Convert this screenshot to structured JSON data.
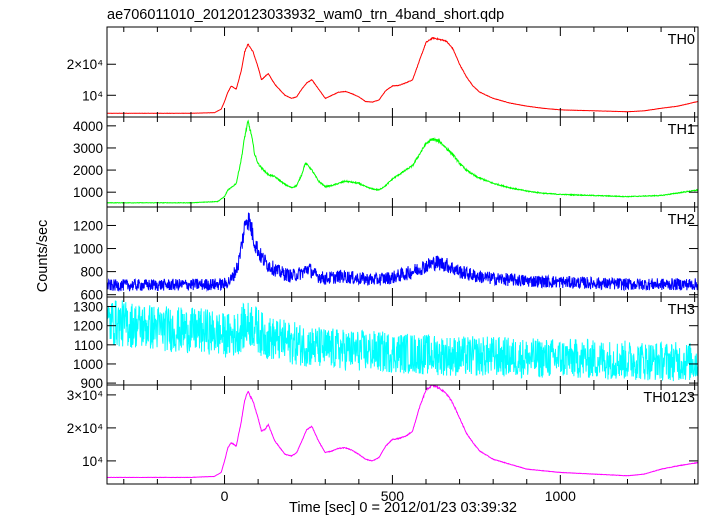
{
  "chart_data": {
    "type": "line",
    "title": "ae706011010_20120123033932_wam0_trn_4band_short.qdp",
    "xlabel": "Time [sec] 0 = 2012/01/23 03:39:32",
    "ylabel": "Counts/sec",
    "xlim": [
      -350,
      1410
    ],
    "x_ticks": [
      0,
      500,
      1000
    ],
    "panels": [
      {
        "name": "TH0",
        "color": "#ff0000",
        "noise": 0.004,
        "ylim": [
          3000,
          32000
        ],
        "y_ticks": [
          10000,
          20000
        ],
        "y_tick_labels": [
          "10⁴",
          "2×10⁴"
        ],
        "x": [
          -350,
          -100,
          -30,
          -10,
          0,
          10,
          20,
          35,
          50,
          60,
          70,
          85,
          100,
          110,
          120,
          130,
          150,
          180,
          200,
          215,
          230,
          245,
          260,
          280,
          300,
          320,
          340,
          360,
          380,
          400,
          420,
          440,
          460,
          480,
          500,
          520,
          540,
          560,
          580,
          600,
          620,
          640,
          660,
          680,
          700,
          720,
          740,
          760,
          800,
          850,
          900,
          950,
          1000,
          1100,
          1200,
          1250,
          1300,
          1350,
          1410
        ],
        "y": [
          4200,
          4200,
          4400,
          5500,
          8000,
          11000,
          13000,
          12000,
          18000,
          24000,
          26500,
          24000,
          19000,
          15000,
          16000,
          17000,
          13500,
          10000,
          9000,
          9500,
          12000,
          14000,
          15000,
          12000,
          9000,
          10000,
          11000,
          11200,
          10500,
          9500,
          8000,
          7800,
          8500,
          11500,
          13000,
          13200,
          14000,
          15000,
          21000,
          27000,
          28500,
          28000,
          27500,
          25000,
          20000,
          16000,
          13000,
          11000,
          9000,
          7500,
          6500,
          5800,
          5300,
          5000,
          4700,
          5000,
          5800,
          6500,
          8000
        ]
      },
      {
        "name": "TH1",
        "color": "#00ff00",
        "noise": 0.012,
        "ylim": [
          330,
          4400
        ],
        "y_ticks": [
          1000,
          2000,
          3000,
          4000
        ],
        "y_tick_labels": [
          "1000",
          "2000",
          "3000",
          "4000"
        ],
        "x": [
          -350,
          -100,
          -20,
          0,
          10,
          20,
          35,
          50,
          60,
          70,
          80,
          90,
          100,
          110,
          130,
          150,
          180,
          200,
          215,
          230,
          240,
          250,
          260,
          280,
          300,
          320,
          340,
          360,
          380,
          400,
          420,
          440,
          460,
          480,
          500,
          520,
          560,
          580,
          600,
          620,
          640,
          660,
          680,
          700,
          720,
          750,
          800,
          850,
          900,
          950,
          1000,
          1100,
          1200,
          1300,
          1410
        ],
        "y": [
          520,
          520,
          580,
          800,
          1100,
          1200,
          1400,
          2500,
          3500,
          4200,
          3600,
          2700,
          2300,
          2100,
          1800,
          1700,
          1350,
          1200,
          1300,
          1800,
          2300,
          2200,
          2000,
          1500,
          1250,
          1300,
          1400,
          1500,
          1450,
          1400,
          1250,
          1150,
          1100,
          1300,
          1600,
          1800,
          2200,
          2700,
          3200,
          3400,
          3300,
          3000,
          2700,
          2300,
          2000,
          1700,
          1400,
          1200,
          1050,
          950,
          900,
          850,
          800,
          850,
          1100
        ]
      },
      {
        "name": "TH2",
        "color": "#0000ff",
        "noise": 0.045,
        "ylim": [
          580,
          1360
        ],
        "y_ticks": [
          600,
          800,
          1000,
          1200
        ],
        "y_tick_labels": [
          "600",
          "800",
          "1000",
          "1200"
        ],
        "x": [
          -350,
          0,
          20,
          40,
          55,
          65,
          75,
          90,
          110,
          130,
          160,
          200,
          230,
          250,
          270,
          300,
          350,
          400,
          450,
          500,
          550,
          600,
          630,
          660,
          700,
          750,
          800,
          900,
          1000,
          1100,
          1200,
          1300,
          1410
        ],
        "y": [
          680,
          690,
          730,
          850,
          1100,
          1270,
          1230,
          1050,
          920,
          860,
          800,
          760,
          790,
          830,
          770,
          740,
          760,
          740,
          730,
          750,
          790,
          850,
          880,
          860,
          800,
          760,
          740,
          720,
          710,
          700,
          690,
          690,
          690
        ]
      },
      {
        "name": "TH3",
        "color": "#00ffff",
        "noise": 0.06,
        "ylim": [
          890,
          1350
        ],
        "y_ticks": [
          900,
          1000,
          1100,
          1200,
          1300
        ],
        "y_tick_labels": [
          "900",
          "1000",
          "1100",
          "1200",
          "1300"
        ],
        "x": [
          -350,
          -250,
          -150,
          -50,
          0,
          30,
          60,
          80,
          120,
          200,
          300,
          400,
          500,
          600,
          700,
          800,
          900,
          1000,
          1100,
          1200,
          1300,
          1410
        ],
        "y": [
          1220,
          1200,
          1180,
          1170,
          1150,
          1150,
          1200,
          1210,
          1140,
          1110,
          1080,
          1070,
          1060,
          1050,
          1040,
          1040,
          1030,
          1030,
          1025,
          1020,
          1015,
          1010
        ]
      },
      {
        "name": "TH0123",
        "color": "#ff00ff",
        "noise": 0.005,
        "ylim": [
          3000,
          33000
        ],
        "y_ticks": [
          10000,
          20000,
          30000
        ],
        "y_tick_labels": [
          "10⁴",
          "2×10⁴",
          "3×10⁴"
        ],
        "x": [
          -350,
          -100,
          -30,
          -10,
          0,
          10,
          20,
          35,
          50,
          60,
          70,
          85,
          100,
          110,
          120,
          130,
          150,
          180,
          200,
          215,
          230,
          245,
          260,
          280,
          300,
          320,
          340,
          360,
          380,
          400,
          420,
          440,
          460,
          480,
          500,
          520,
          540,
          560,
          580,
          600,
          620,
          640,
          660,
          680,
          700,
          720,
          740,
          760,
          800,
          850,
          900,
          950,
          1000,
          1100,
          1200,
          1250,
          1300,
          1350,
          1410
        ],
        "y": [
          5000,
          5000,
          5300,
          6500,
          10000,
          14000,
          15500,
          14500,
          22000,
          28500,
          31000,
          28000,
          23000,
          19000,
          19500,
          21000,
          16000,
          12000,
          11500,
          12500,
          16000,
          19500,
          20500,
          16000,
          12500,
          13000,
          13800,
          14000,
          13200,
          12000,
          10500,
          10000,
          11000,
          14500,
          16500,
          16800,
          17500,
          19000,
          26000,
          31500,
          33000,
          32000,
          30500,
          27500,
          23000,
          18500,
          15500,
          13000,
          10500,
          9000,
          7500,
          7000,
          6500,
          6000,
          5500,
          6000,
          7500,
          8500,
          9500
        ]
      }
    ]
  }
}
